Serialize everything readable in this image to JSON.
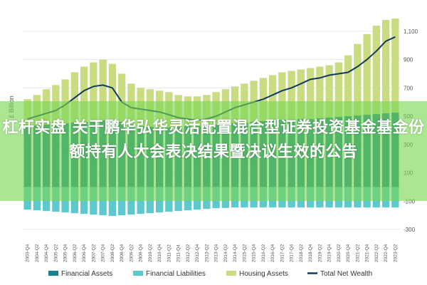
{
  "overlay": {
    "headline": "杠杆实盘 关于鹏华弘华灵活配置混合型证券投资基金基金份额持有人大会表决结果暨决议生效的公告"
  },
  "colors": {
    "financial_assets": "#1a7f8e",
    "financial_liabilities": "#5ec8cf",
    "housing_assets": "#c9dc82",
    "total_net_wealth": "#123a5e",
    "overlay": "#78d750"
  },
  "chart_data": {
    "type": "bar",
    "ylabel": "£ Billion",
    "ylim": [
      -300,
      1200
    ],
    "yticks": [
      -300,
      -100,
      100,
      300,
      500,
      700,
      900,
      1100
    ],
    "ytick_labels": [
      "-300",
      "-100",
      "100",
      "300",
      "500",
      "700",
      "900",
      "1,100"
    ],
    "grid": true,
    "legend_position": "bottom",
    "categories": [
      "2003-Q4",
      "2004-Q2",
      "2004-Q4",
      "2005-Q2",
      "2005-Q4",
      "2006-Q2",
      "2006-Q4",
      "2007-Q2",
      "2007-Q4",
      "2008-Q2",
      "2008-Q4",
      "2009-Q2",
      "2009-Q4",
      "2010-Q2",
      "2010-Q4",
      "2011-Q2",
      "2011-Q4",
      "2012-Q2",
      "2012-Q4",
      "2013-Q2",
      "2013-Q4",
      "2014-Q2",
      "2014-Q4",
      "2015-Q2",
      "2015-Q4",
      "2016-Q2",
      "2016-Q4",
      "2017-Q2",
      "2017-Q4",
      "2018-Q2",
      "2018-Q4",
      "2019-Q2",
      "2019-Q4",
      "2020-Q2",
      "2020-Q4",
      "2021-Q2",
      "2021-Q4",
      "2022-Q2",
      "2022-Q4",
      "2023-Q2"
    ],
    "series": [
      {
        "name": "Financial Assets",
        "values": [
          430,
          435,
          440,
          445,
          450,
          455,
          460,
          465,
          470,
          470,
          460,
          440,
          430,
          425,
          420,
          420,
          425,
          430,
          430,
          435,
          440,
          445,
          450,
          455,
          460,
          465,
          470,
          475,
          475,
          480,
          480,
          485,
          490,
          495,
          500,
          505,
          510,
          515,
          520,
          525
        ]
      },
      {
        "name": "Financial Liabilities",
        "values": [
          -160,
          -165,
          -170,
          -175,
          -180,
          -185,
          -190,
          -195,
          -200,
          -205,
          -200,
          -195,
          -190,
          -185,
          -180,
          -175,
          -170,
          -165,
          -160,
          -155,
          -150,
          -148,
          -145,
          -145,
          -145,
          -145,
          -145,
          -145,
          -145,
          -145,
          -145,
          -145,
          -145,
          -145,
          -145,
          -145,
          -145,
          -145,
          -145,
          -145
        ]
      },
      {
        "name": "Housing Assets",
        "values": [
          620,
          650,
          690,
          720,
          760,
          810,
          850,
          880,
          900,
          870,
          800,
          730,
          700,
          690,
          680,
          670,
          650,
          640,
          640,
          650,
          670,
          690,
          710,
          730,
          750,
          770,
          790,
          810,
          820,
          830,
          840,
          850,
          860,
          880,
          930,
          1010,
          1080,
          1140,
          1180,
          1190
        ]
      },
      {
        "name": "Total Net Wealth",
        "values": [
          480,
          500,
          520,
          540,
          580,
          630,
          680,
          710,
          720,
          700,
          600,
          560,
          550,
          540,
          530,
          510,
          490,
          480,
          470,
          480,
          500,
          530,
          560,
          580,
          600,
          620,
          650,
          680,
          700,
          730,
          760,
          770,
          790,
          800,
          810,
          850,
          900,
          960,
          1030,
          1060
        ]
      }
    ]
  }
}
